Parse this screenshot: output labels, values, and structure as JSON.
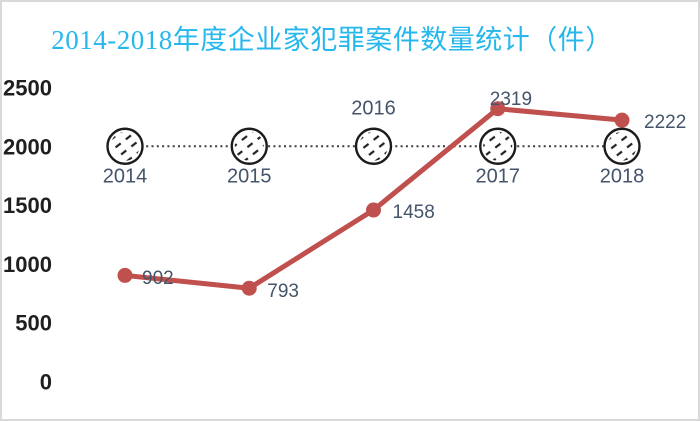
{
  "frame": {
    "background": "#FFFFFF",
    "border_color": "#D9D9D9"
  },
  "chart_data": {
    "type": "line",
    "title": "2014-2018年度企业家犯罪案件数量统计（件）",
    "categories": [
      "2014",
      "2015",
      "2016",
      "2017",
      "2018"
    ],
    "series": [
      {
        "name": "cases",
        "values": [
          902,
          793,
          1458,
          2319,
          2222
        ],
        "data_labels": [
          "902",
          "793",
          "1458",
          "2319",
          "2222"
        ],
        "color": "#C0504D"
      }
    ],
    "reference_line": {
      "value": 2000,
      "style": "dotted",
      "marker": "hatched-circle",
      "category_label_side": [
        "below",
        "below",
        "above",
        "below",
        "below"
      ]
    },
    "y_axis": {
      "ticks": [
        2500,
        2000,
        1500,
        1000,
        500,
        0
      ],
      "min": 0,
      "max": 2500,
      "label": ""
    },
    "x_axis": {
      "label": ""
    },
    "grid": "off",
    "legend": "none",
    "colors": {
      "title": "#26B7ED",
      "axis_labels": "#1F1F1F",
      "category_labels": "#44546A",
      "data_labels": "#44546A",
      "line": "#C0504D",
      "reference": "#3C3C3C",
      "marker_stroke": "#1C1C1C"
    }
  }
}
